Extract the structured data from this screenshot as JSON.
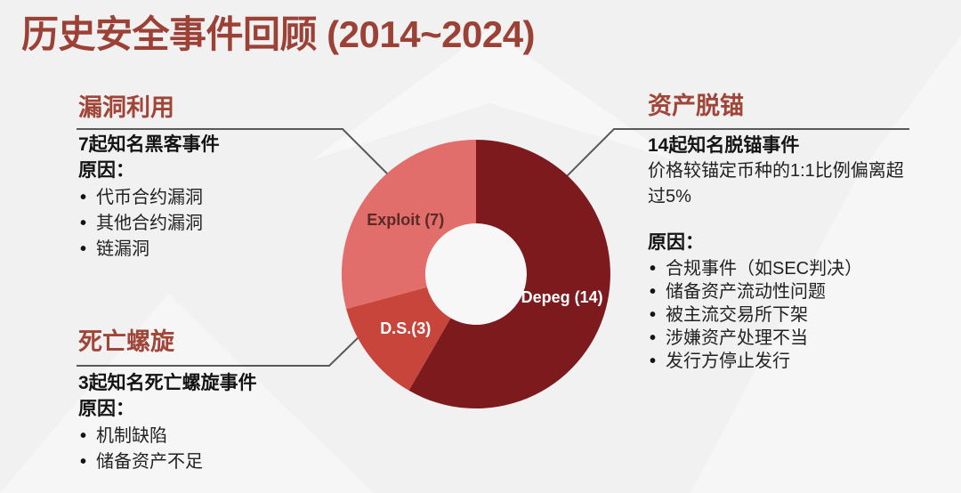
{
  "title": "历史安全事件回顾 (2014~2024)",
  "sections": {
    "exploit": {
      "header": "漏洞利用",
      "headline": "7起知名黑客事件",
      "reasons_label": "原因：",
      "bullets": [
        "代币合约漏洞",
        "其他合约漏洞",
        "链漏洞"
      ]
    },
    "death_spiral": {
      "header": "死亡螺旋",
      "headline": "3起知名死亡螺旋事件",
      "reasons_label": "原因：",
      "bullets": [
        "机制缺陷",
        "储备资产不足"
      ]
    },
    "depeg": {
      "header": "资产脱锚",
      "headline": "14起知名脱锚事件",
      "description": "价格较锚定币种的1:1比例偏离超过5%",
      "reasons_label": "原因：",
      "bullets": [
        "合规事件（如SEC判决）",
        "储备资产流动性问题",
        "被主流交易所下架",
        "涉嫌资产处理不当",
        "发行方停止发行"
      ]
    }
  },
  "chart_data": {
    "type": "pie",
    "subtype": "donut",
    "title": "",
    "categories": [
      "Depeg",
      "D.S.",
      "Exploit"
    ],
    "values": [
      14,
      3,
      7
    ],
    "series": [
      {
        "name": "Depeg",
        "value": 14,
        "label": "Depeg (14)",
        "color": "#7C1A1E",
        "label_color": "#FFFFFF"
      },
      {
        "name": "D.S.",
        "value": 3,
        "label": "D.S.(3)",
        "color": "#C8453C",
        "label_color": "#FFFFFF"
      },
      {
        "name": "Exploit",
        "value": 7,
        "label": "Exploit (7)",
        "color": "#E26E6B",
        "label_color": "#5A2A27"
      }
    ],
    "start_angle_deg": 0,
    "direction": "clockwise",
    "inner_radius_ratio": 0.38,
    "legend_position": "none",
    "labels_inside": true,
    "hole_color": "#F7F7F8"
  },
  "colors": {
    "accent": "#9C4136",
    "section_header": "#A04538",
    "connector_line": "#58595B",
    "background": "#F1F1F2",
    "body_text": "#1C1C1C"
  }
}
